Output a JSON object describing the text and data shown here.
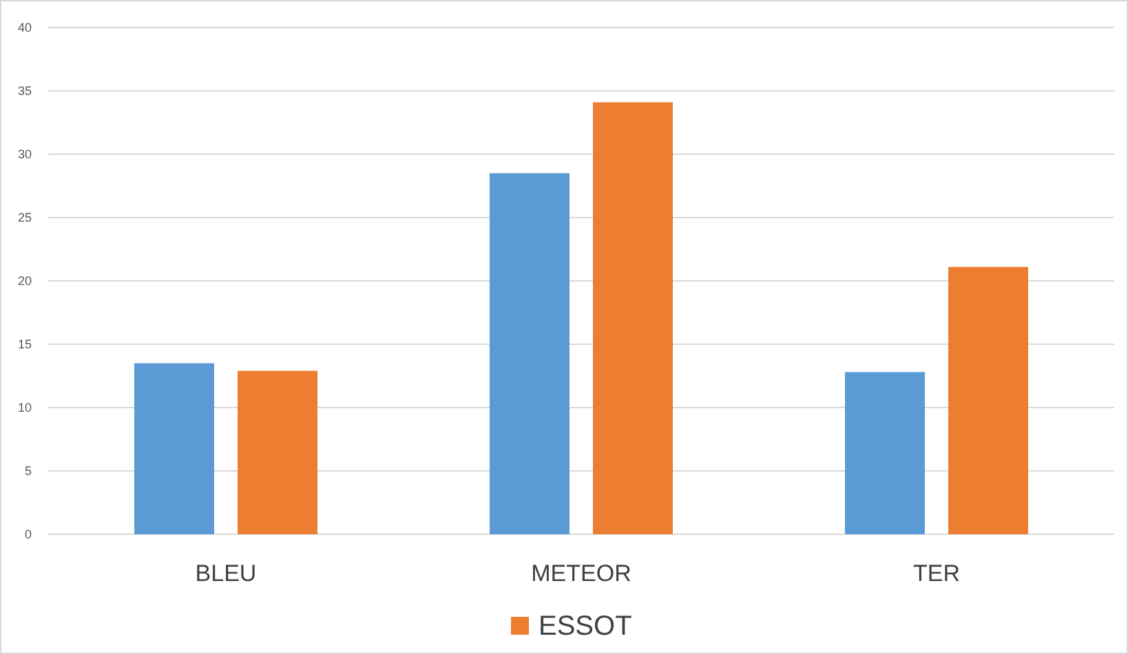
{
  "chart_data": {
    "type": "bar",
    "categories": [
      "BLEU",
      "METEOR",
      "TER"
    ],
    "series": [
      {
        "color": "#5b9bd5",
        "values": [
          13.5,
          28.5,
          12.8
        ]
      },
      {
        "name": "ESSOT",
        "color": "#ed7d31",
        "values": [
          12.9,
          34.1,
          21.1
        ]
      }
    ],
    "ylim": [
      0,
      40
    ],
    "yticks": [
      0,
      5,
      10,
      15,
      20,
      25,
      30,
      35,
      40
    ],
    "grid": "y",
    "legend": "bottom"
  }
}
